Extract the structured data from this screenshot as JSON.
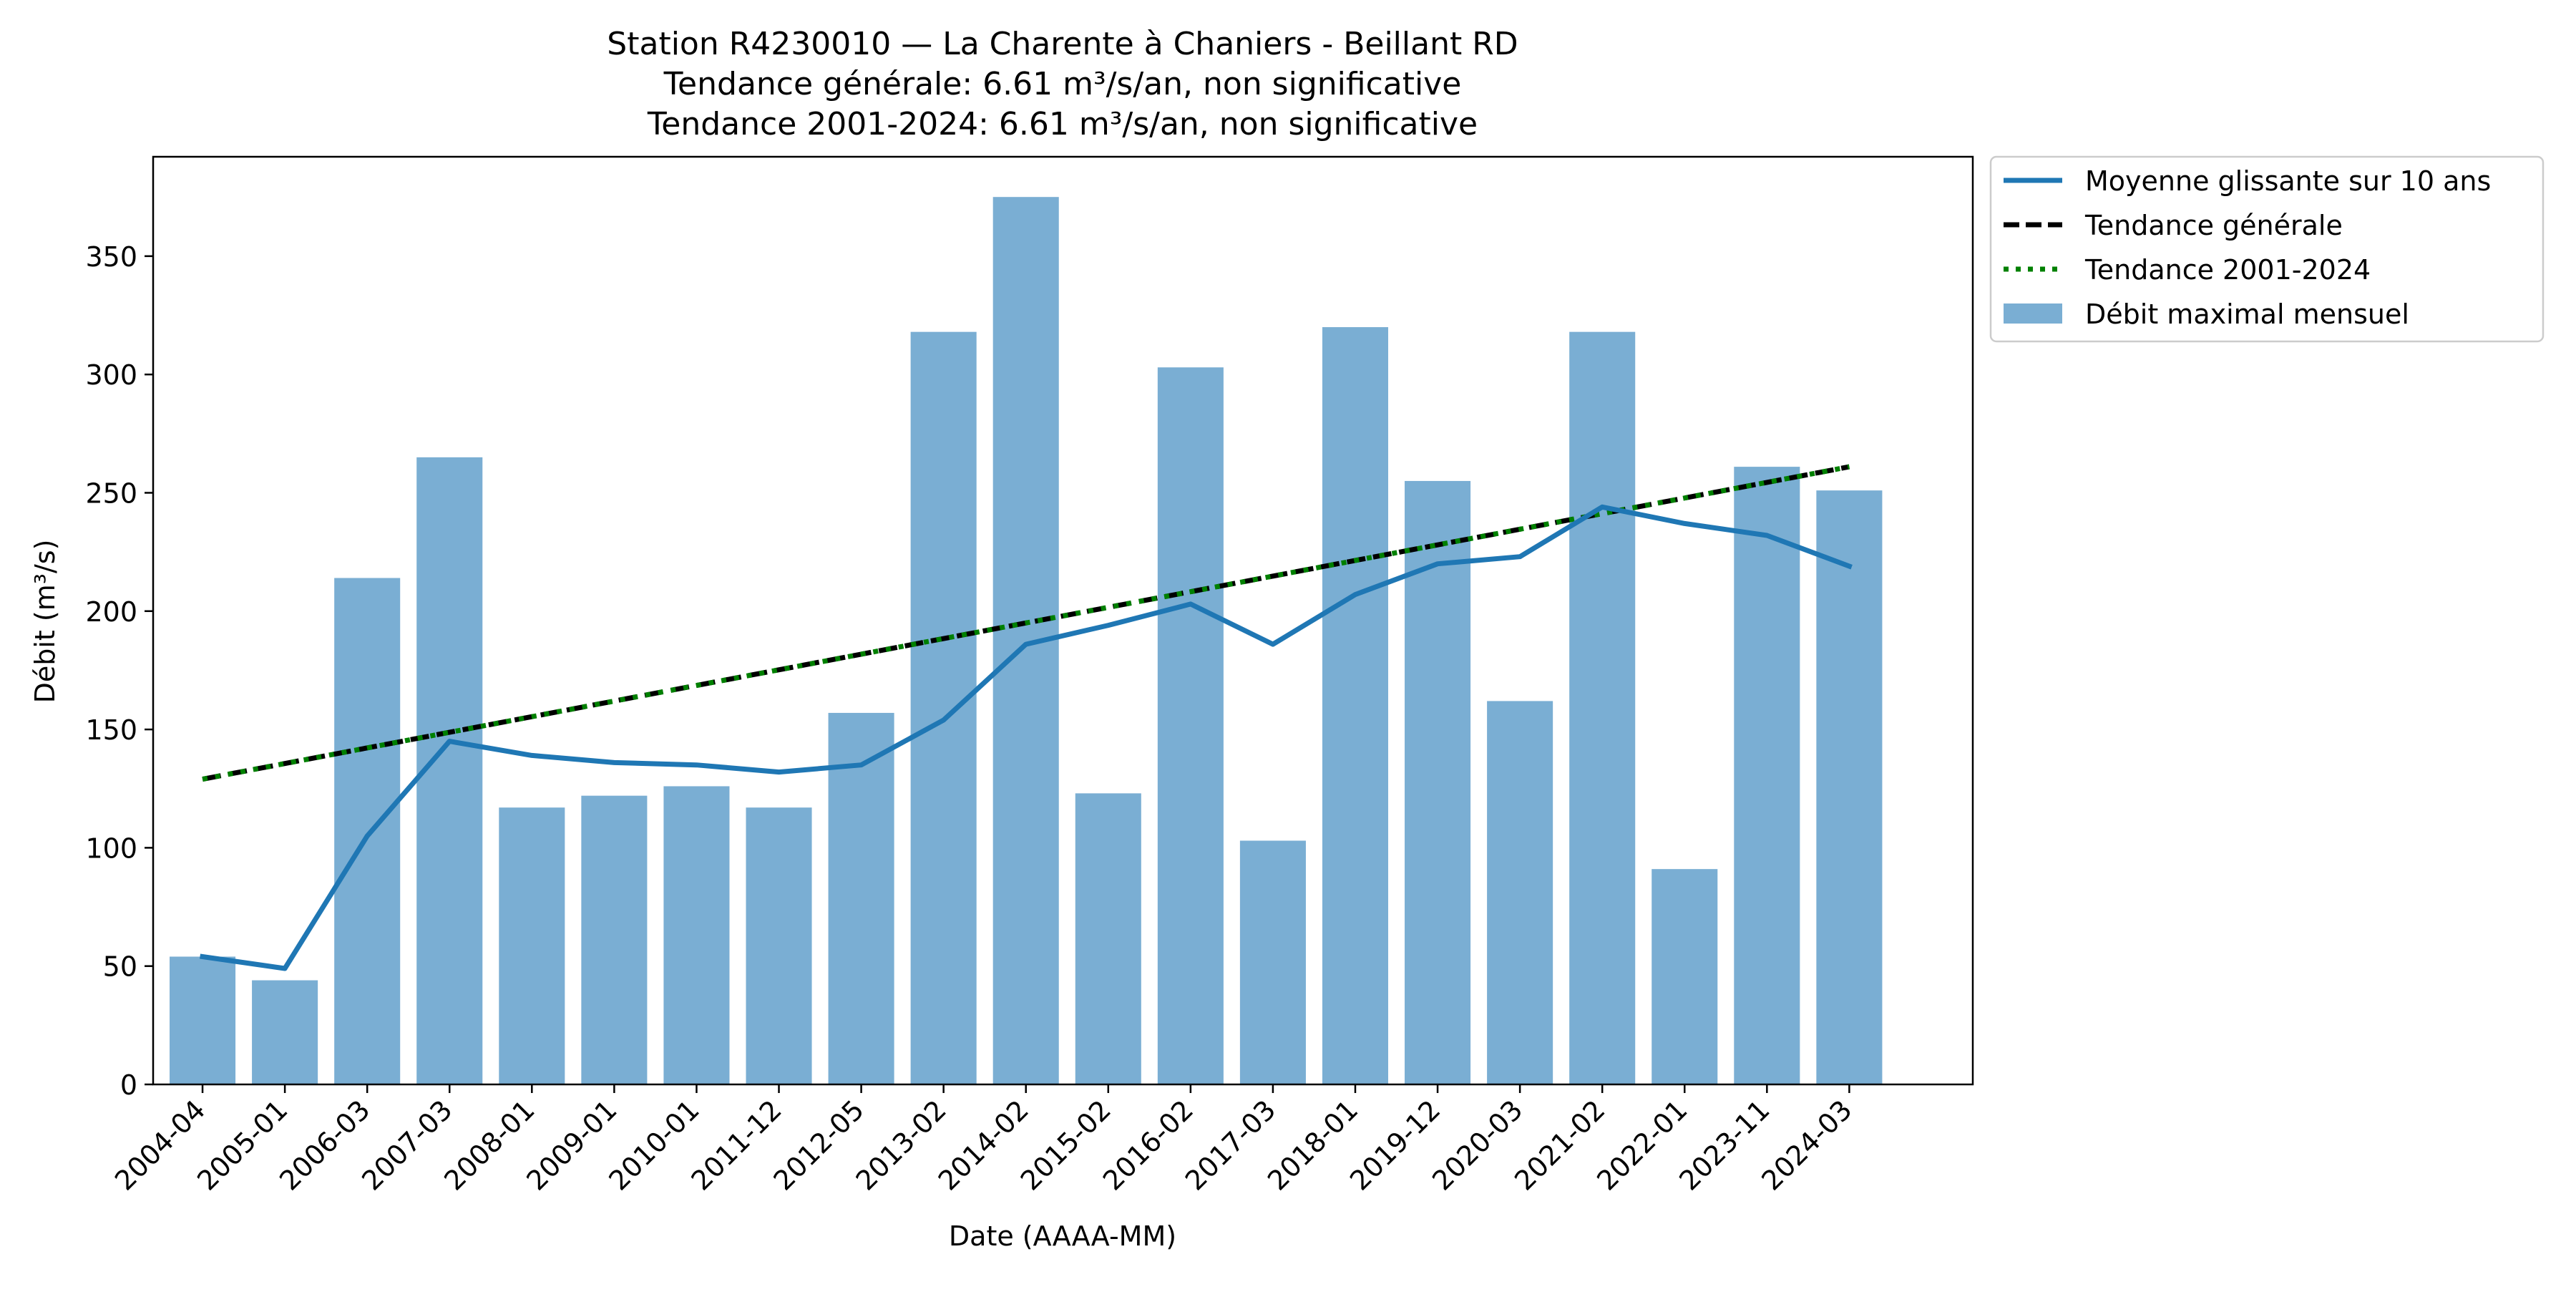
{
  "chart_data": {
    "type": "bar",
    "title_lines": [
      "Station R4230010 — La Charente à Chaniers - Beillant RD",
      "Tendance générale: 6.61 m³/s/an, non significative",
      "Tendance 2001-2024: 6.61 m³/s/an, non significative"
    ],
    "xlabel": "Date (AAAA-MM)",
    "ylabel": "Débit (m³/s)",
    "ylim": [
      0,
      392
    ],
    "yticks": [
      0,
      50,
      100,
      150,
      200,
      250,
      300,
      350
    ],
    "categories": [
      "2004-04",
      "2005-01",
      "2006-03",
      "2007-03",
      "2008-01",
      "2009-01",
      "2010-01",
      "2011-12",
      "2012-05",
      "2013-02",
      "2014-02",
      "2015-02",
      "2016-02",
      "2017-03",
      "2018-01",
      "2019-12",
      "2020-03",
      "2021-02",
      "2022-01",
      "2023-11",
      "2024-03"
    ],
    "series": [
      {
        "name": "Débit maximal mensuel",
        "kind": "bar",
        "color": "#7aaed3",
        "values": [
          54,
          44,
          214,
          265,
          117,
          122,
          126,
          117,
          157,
          318,
          375,
          123,
          303,
          103,
          320,
          255,
          162,
          318,
          91,
          261,
          251
        ]
      },
      {
        "name": "Moyenne glissante sur 10 ans",
        "kind": "line",
        "style": "solid",
        "color": "#1f77b4",
        "values": [
          54,
          49,
          105,
          145,
          139,
          136,
          135,
          132,
          135,
          154,
          186,
          194,
          203,
          186,
          207,
          220,
          223,
          244,
          237,
          232,
          219
        ]
      },
      {
        "name": "Tendance générale",
        "kind": "line",
        "style": "dashed",
        "color": "#000000",
        "start": 129,
        "end": 261
      },
      {
        "name": "Tendance 2001-2024",
        "kind": "line",
        "style": "dotted",
        "color": "#008000",
        "start": 129,
        "end": 261
      }
    ],
    "legend": {
      "placement": "outside-top-right",
      "order": [
        "Moyenne glissante sur 10 ans",
        "Tendance générale",
        "Tendance 2001-2024",
        "Débit maximal mensuel"
      ]
    }
  }
}
